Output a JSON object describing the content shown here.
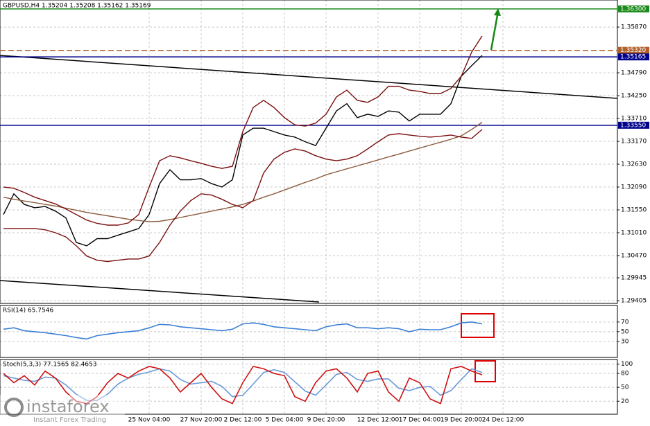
{
  "chart_data": [
    {
      "type": "line",
      "title": "GBPUSD,H4  1.35204 1.35208 1.35162 1.35169",
      "categories": [
        null,
        null,
        null,
        null,
        null,
        null,
        null,
        null,
        null,
        null,
        null,
        null,
        null,
        null,
        "25 Nov 04:00",
        null,
        null,
        null,
        null,
        "27 Nov 20:00",
        null,
        null,
        null,
        "2 Dec 12:00",
        null,
        null,
        null,
        "5 Dec 04:00",
        null,
        null,
        null,
        "9 Dec 20:00",
        null,
        null,
        null,
        null,
        "12 Dec 12:00",
        null,
        null,
        null,
        "17 Dec 04:00",
        null,
        null,
        null,
        "19 Dec 20:00",
        null,
        null,
        null,
        "24 Dec 12:00"
      ],
      "series": [
        {
          "name": "Close",
          "color": "#000000",
          "values": [
            1.3144,
            1.3193,
            1.3168,
            1.316,
            1.3163,
            1.3152,
            1.3136,
            1.3078,
            1.307,
            1.3087,
            1.3087,
            1.3095,
            1.3103,
            1.3111,
            1.3144,
            1.3217,
            1.325,
            1.3226,
            1.3226,
            1.3229,
            1.3217,
            1.3209,
            1.3226,
            1.3332,
            1.3348,
            1.3348,
            1.334,
            1.3332,
            1.3327,
            1.3316,
            1.3307,
            1.3348,
            1.3389,
            1.3406,
            1.3373,
            1.3381,
            1.3376,
            1.3389,
            1.3386,
            1.3365,
            1.3381,
            1.3381,
            1.3381,
            1.3406,
            1.3471,
            1.3496,
            1.352,
            null,
            null
          ]
        },
        {
          "name": "MA",
          "color": "#8b5a3c",
          "values": [
            1.3185,
            1.318,
            1.3176,
            1.3172,
            1.3168,
            1.3164,
            1.3159,
            1.3154,
            1.3149,
            1.3145,
            1.3141,
            1.3137,
            1.3133,
            1.313,
            1.3127,
            1.3128,
            1.3132,
            1.3137,
            1.3142,
            1.3147,
            1.3152,
            1.3157,
            1.3162,
            1.3168,
            1.3176,
            1.3185,
            1.3193,
            1.3202,
            1.3211,
            1.322,
            1.3228,
            1.3238,
            1.3245,
            1.3252,
            1.3259,
            1.3266,
            1.3273,
            1.328,
            1.3287,
            1.3294,
            1.3301,
            1.3308,
            1.3315,
            1.3322,
            1.333,
            1.3345,
            1.3362,
            null,
            null
          ]
        },
        {
          "name": "Upper band",
          "color": "#7a0f0f",
          "values": [
            1.3209,
            1.3206,
            1.3196,
            1.3185,
            1.3177,
            1.3169,
            1.3157,
            1.3144,
            1.3131,
            1.3123,
            1.3119,
            1.3119,
            1.3124,
            1.3144,
            1.3209,
            1.3271,
            1.3283,
            1.3278,
            1.3271,
            1.3265,
            1.3258,
            1.3253,
            1.3258,
            1.334,
            1.3397,
            1.3414,
            1.3397,
            1.3373,
            1.3356,
            1.3353,
            1.336,
            1.3381,
            1.3422,
            1.3438,
            1.3414,
            1.3409,
            1.3422,
            1.3447,
            1.3447,
            1.3438,
            1.3435,
            1.343,
            1.343,
            1.3442,
            1.3471,
            1.3528,
            1.3566,
            null,
            null
          ]
        },
        {
          "name": "Lower band",
          "color": "#7a0f0f",
          "values": [
            1.3111,
            1.3111,
            1.3111,
            1.3111,
            1.3108,
            1.3101,
            1.3091,
            1.307,
            1.3046,
            1.3036,
            1.3033,
            1.3036,
            1.3039,
            1.3039,
            1.3046,
            1.3078,
            1.3119,
            1.3152,
            1.3177,
            1.3193,
            1.319,
            1.318,
            1.3168,
            1.316,
            1.3177,
            1.3242,
            1.3275,
            1.3291,
            1.3299,
            1.3294,
            1.3283,
            1.3275,
            1.3271,
            1.3275,
            1.3283,
            1.3299,
            1.3316,
            1.3332,
            1.3335,
            1.3332,
            1.3329,
            1.3327,
            1.3329,
            1.3332,
            1.3327,
            1.3324,
            1.3345,
            null,
            null
          ]
        }
      ],
      "ylim": [
        1.2934,
        1.3651
      ],
      "yticks": [
        {
          "value": 1.3587,
          "label": "1.35870"
        },
        {
          "value": 1.3479,
          "label": "1.34790"
        },
        {
          "value": 1.3425,
          "label": "1.34250"
        },
        {
          "value": 1.3371,
          "label": "1.33710"
        },
        {
          "value": 1.3317,
          "label": "1.33170"
        },
        {
          "value": 1.3263,
          "label": "1.32630"
        },
        {
          "value": 1.3209,
          "label": "1.32090"
        },
        {
          "value": 1.3155,
          "label": "1.31550"
        },
        {
          "value": 1.3101,
          "label": "1.31010"
        },
        {
          "value": 1.3047,
          "label": "1.30470"
        },
        1.29945,
        1.29405
      ],
      "levels": [
        {
          "value": 1.363,
          "label": "1.36300",
          "color": "#1a8a1a"
        },
        {
          "value": 1.3532,
          "label": "1.35320",
          "color": "#b0602a"
        },
        {
          "value": 1.35165,
          "label": "1.35165",
          "color": "#00008b"
        },
        {
          "value": 1.3355,
          "label": "1.33550",
          "color": "#00008b"
        }
      ],
      "grid": true
    },
    {
      "type": "line",
      "title": "RSI(14) 65.7546",
      "series": [
        {
          "name": "RSI",
          "color": "#3a7fd5",
          "values": [
            55,
            58,
            52,
            50,
            48,
            45,
            42,
            38,
            35,
            42,
            45,
            48,
            50,
            52,
            58,
            65,
            64,
            60,
            58,
            56,
            54,
            52,
            55,
            66,
            68,
            65,
            60,
            58,
            56,
            54,
            52,
            60,
            64,
            66,
            58,
            58,
            56,
            58,
            56,
            50,
            55,
            54,
            54,
            60,
            68,
            70,
            66,
            null,
            null
          ]
        }
      ],
      "ylim": [
        -3,
        104
      ],
      "yticks": [
        70,
        50,
        30
      ],
      "grid": true
    },
    {
      "type": "line",
      "title": "Stoch(5,3,3) 77.1565 82.4653",
      "series": [
        {
          "name": "Signal",
          "color": "#6a9ad8",
          "values": [
            75,
            70,
            65,
            63,
            72,
            70,
            55,
            35,
            22,
            22,
            35,
            57,
            70,
            78,
            83,
            90,
            85,
            67,
            57,
            60,
            63,
            52,
            30,
            33,
            57,
            82,
            88,
            82,
            62,
            42,
            33,
            55,
            78,
            82,
            67,
            63,
            68,
            68,
            48,
            43,
            50,
            52,
            33,
            43,
            67,
            90,
            82,
            null,
            null
          ]
        },
        {
          "name": "Main",
          "color": "#d01010",
          "values": [
            80,
            60,
            75,
            55,
            85,
            70,
            40,
            20,
            15,
            30,
            60,
            80,
            70,
            85,
            95,
            90,
            70,
            40,
            60,
            80,
            50,
            25,
            15,
            60,
            95,
            90,
            80,
            75,
            30,
            20,
            60,
            85,
            90,
            70,
            40,
            80,
            85,
            40,
            20,
            70,
            60,
            25,
            15,
            90,
            95,
            85,
            77,
            null,
            null
          ]
        }
      ],
      "ylim": [
        -8,
        110
      ],
      "yticks": [
        100,
        80,
        50,
        20
      ],
      "grid": true
    }
  ],
  "watermark": {
    "name": "instaforex",
    "tagline": "Instant Forex Trading"
  }
}
